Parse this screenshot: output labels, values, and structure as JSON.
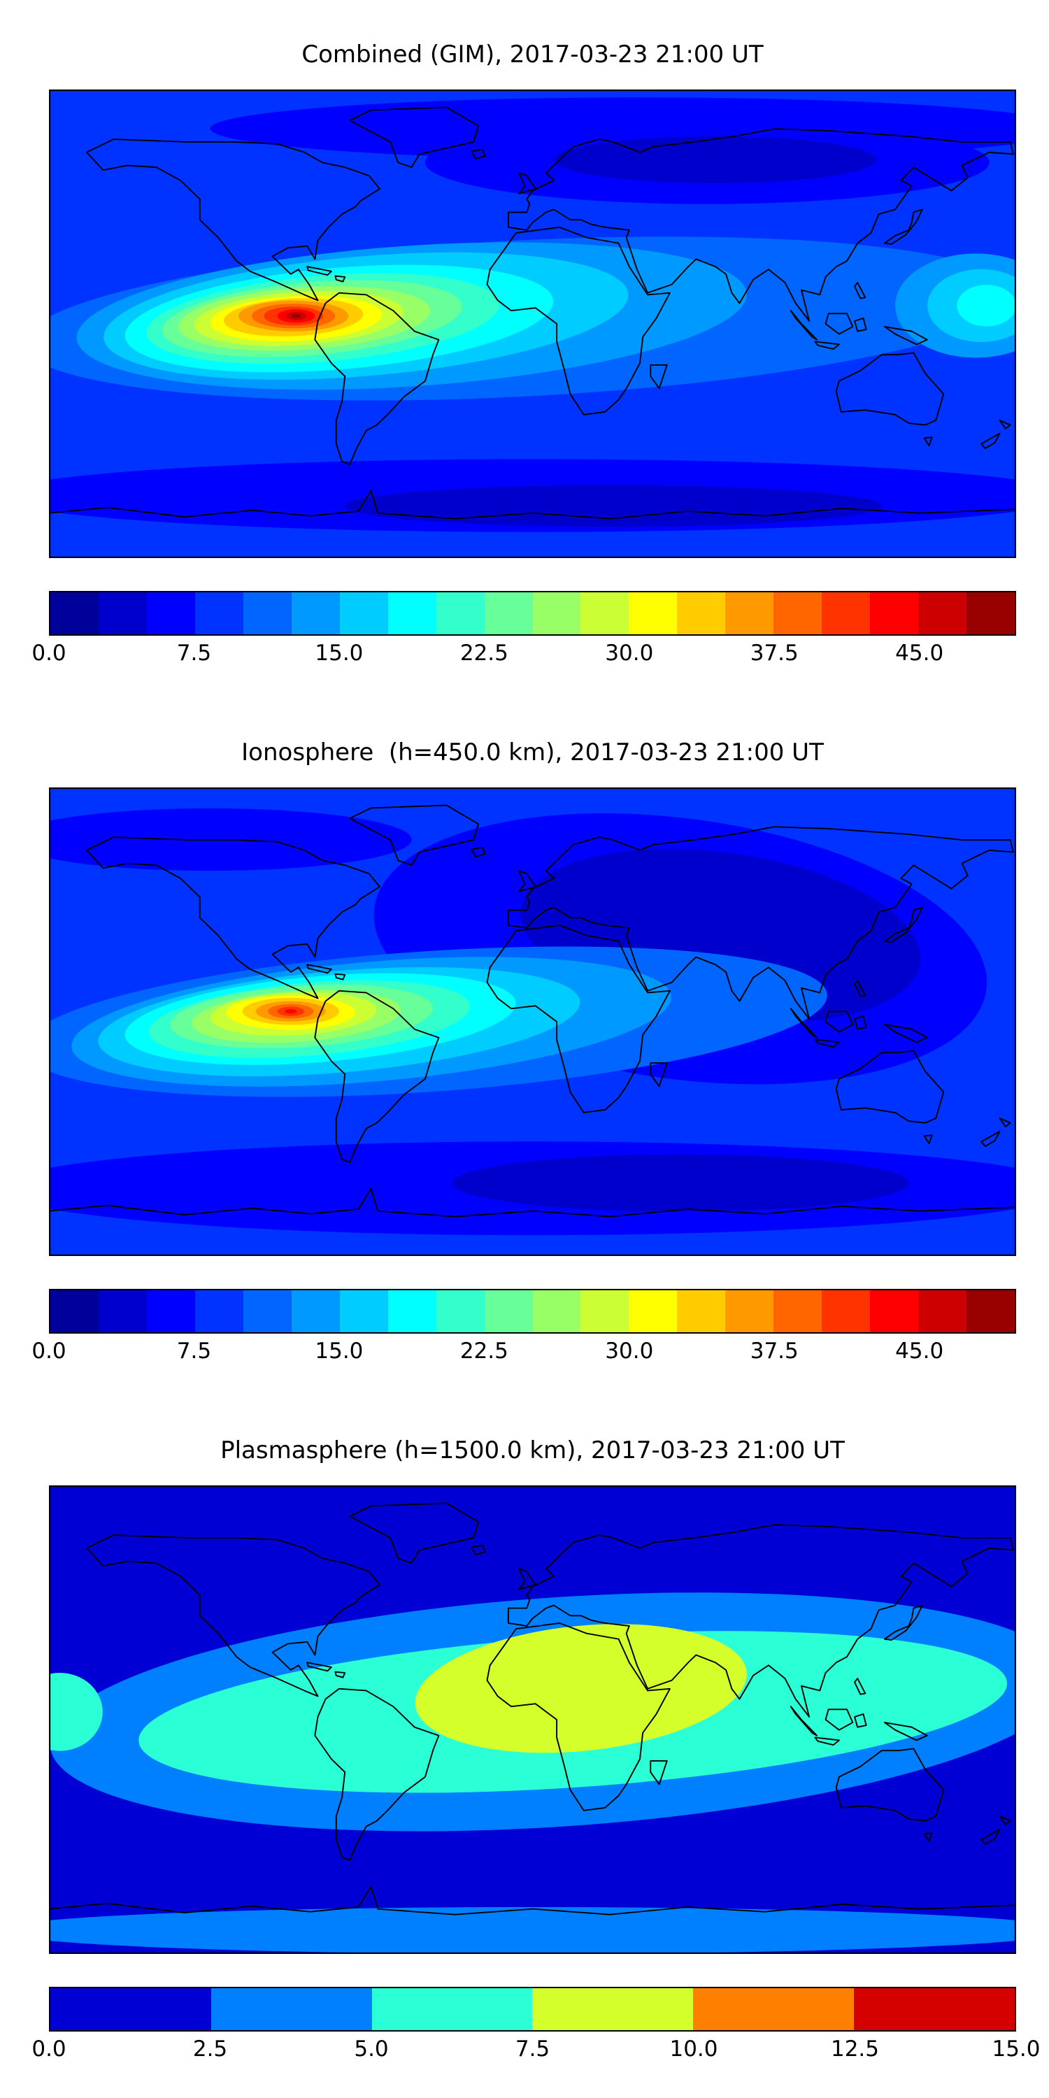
{
  "page": {
    "background": "#ffffff"
  },
  "style": {
    "coastline_color": "#000000",
    "frame_color": "#000000"
  },
  "chart_data": [
    {
      "type": "heatmap",
      "chart_kind": "filled-contour global TEC map, equirectangular projection, lon -180..180, lat -90..90, coastlines overlaid",
      "title": "Combined (GIM), 2017-03-23 21:00 UT",
      "colorbar": {
        "orientation": "horizontal",
        "min": 0,
        "max": 50,
        "level_step": 2.5,
        "ticks": [
          0,
          7.5,
          15,
          22.5,
          30,
          37.5,
          45
        ],
        "tick_labels": [
          "0.0",
          "7.5",
          "15.0",
          "22.5",
          "30.0",
          "37.5",
          "45.0"
        ],
        "colors": [
          "#00009a",
          "#0000cc",
          "#0000ff",
          "#0033ff",
          "#0066ff",
          "#0099ff",
          "#00ccff",
          "#00ffff",
          "#33ffcc",
          "#66ff99",
          "#99ff66",
          "#ccff33",
          "#ffff00",
          "#ffcc00",
          "#ff9900",
          "#ff6600",
          "#ff3300",
          "#ff0000",
          "#cc0000",
          "#990000"
        ]
      },
      "background_value": 7.5,
      "peak": {
        "value_approx": 47.5,
        "lon": -88,
        "lat": 3
      },
      "contours": [
        {
          "lon": 40,
          "lat": 75,
          "rlon": 160,
          "rlat": 12,
          "rot": 0,
          "value": 5
        },
        {
          "lon": 65,
          "lat": 62,
          "rlon": 105,
          "rlat": 16,
          "rot": 0,
          "value": 5
        },
        {
          "lon": 68,
          "lat": 63,
          "rlon": 60,
          "rlat": 9,
          "rot": 0,
          "value": 2.5
        },
        {
          "lon": 0,
          "lat": -66,
          "rlon": 200,
          "rlat": 14,
          "rot": 0,
          "value": 5
        },
        {
          "lon": 30,
          "lat": -70,
          "rlon": 100,
          "rlat": 8,
          "rot": 0,
          "value": 2.5
        },
        {
          "lon": -5,
          "lat": 2,
          "rlon": 185,
          "rlat": 30,
          "rot": -3,
          "value": 10
        },
        {
          "lon": -45,
          "lat": 3,
          "rlon": 125,
          "rlat": 27,
          "rot": -4,
          "value": 12.5
        },
        {
          "lon": 165,
          "lat": 7,
          "rlon": 30,
          "rlat": 20,
          "rot": 0,
          "value": 12.5
        },
        {
          "lon": 167,
          "lat": 7,
          "rlon": 20,
          "rlat": 14,
          "rot": 0,
          "value": 15
        },
        {
          "lon": 169,
          "lat": 7,
          "rlon": 11,
          "rlat": 8,
          "rot": 0,
          "value": 17.5
        },
        {
          "lon": -62,
          "lat": 3,
          "rlon": 98,
          "rlat": 23,
          "rot": -5,
          "value": 15
        },
        {
          "lon": -72,
          "lat": 2,
          "rlon": 80,
          "rlat": 19.5,
          "rot": -5,
          "value": 17.5
        },
        {
          "lon": -78,
          "lat": 2,
          "rlon": 66,
          "rlat": 16.5,
          "rot": -5,
          "value": 20
        },
        {
          "lon": -82,
          "lat": 2,
          "rlon": 56,
          "rlat": 14,
          "rot": -5,
          "value": 22.5
        },
        {
          "lon": -85,
          "lat": 2,
          "rlon": 47,
          "rlat": 12,
          "rot": -4,
          "value": 25
        },
        {
          "lon": -87,
          "lat": 2,
          "rlon": 39,
          "rlat": 10.2,
          "rot": -4,
          "value": 27.5
        },
        {
          "lon": -88,
          "lat": 2,
          "rlon": 32,
          "rlat": 8.6,
          "rot": -3,
          "value": 30
        },
        {
          "lon": -89,
          "lat": 2.5,
          "rlon": 26,
          "rlat": 7.2,
          "rot": -3,
          "value": 32.5
        },
        {
          "lon": -89,
          "lat": 3,
          "rlon": 20.5,
          "rlat": 5.9,
          "rot": 0,
          "value": 35
        },
        {
          "lon": -89,
          "lat": 3,
          "rlon": 15.5,
          "rlat": 4.7,
          "rot": 0,
          "value": 37.5
        },
        {
          "lon": -89,
          "lat": 3,
          "rlon": 11,
          "rlat": 3.6,
          "rot": 0,
          "value": 40
        },
        {
          "lon": -88,
          "lat": 3,
          "rlon": 7,
          "rlat": 2.6,
          "rot": 0,
          "value": 42.5
        },
        {
          "lon": -88,
          "lat": 3,
          "rlon": 4,
          "rlat": 1.6,
          "rot": 0,
          "value": 45
        },
        {
          "lon": -88,
          "lat": 3,
          "rlon": 1.8,
          "rlat": 0.8,
          "rot": 0,
          "value": 47.5
        }
      ]
    },
    {
      "type": "heatmap",
      "chart_kind": "filled-contour global TEC map, equirectangular projection, lon -180..180, lat -90..90, coastlines overlaid",
      "title": "Ionosphere  (h=450.0 km), 2017-03-23 21:00 UT",
      "colorbar": {
        "orientation": "horizontal",
        "min": 0,
        "max": 50,
        "level_step": 2.5,
        "ticks": [
          0,
          7.5,
          15,
          22.5,
          30,
          37.5,
          45
        ],
        "tick_labels": [
          "0.0",
          "7.5",
          "15.0",
          "22.5",
          "30.0",
          "37.5",
          "45.0"
        ],
        "colors": [
          "#00009a",
          "#0000cc",
          "#0000ff",
          "#0033ff",
          "#0066ff",
          "#0099ff",
          "#00ccff",
          "#00ffff",
          "#33ffcc",
          "#66ff99",
          "#99ff66",
          "#ccff33",
          "#ffff00",
          "#ffcc00",
          "#ff9900",
          "#ff6600",
          "#ff3300",
          "#ff0000",
          "#cc0000",
          "#990000"
        ]
      },
      "background_value": 7.5,
      "peak": {
        "value_approx": 45,
        "lon": -90,
        "lat": 4
      },
      "contours": [
        {
          "lon": 55,
          "lat": 28,
          "rlon": 115,
          "rlat": 50,
          "rot": 8,
          "value": 5
        },
        {
          "lon": 70,
          "lat": 33,
          "rlon": 75,
          "rlat": 32,
          "rot": 8,
          "value": 2.5
        },
        {
          "lon": 0,
          "lat": -64,
          "rlon": 200,
          "rlat": 18,
          "rot": 0,
          "value": 5
        },
        {
          "lon": 55,
          "lat": -62,
          "rlon": 85,
          "rlat": 11,
          "rot": 0,
          "value": 2.5
        },
        {
          "lon": -120,
          "lat": 70,
          "rlon": 75,
          "rlat": 12,
          "rot": 0,
          "value": 5
        },
        {
          "lon": -40,
          "lat": 0,
          "rlon": 150,
          "rlat": 27,
          "rot": -4,
          "value": 10
        },
        {
          "lon": -60,
          "lat": 0,
          "rlon": 112,
          "rlat": 23,
          "rot": -5,
          "value": 12.5
        },
        {
          "lon": -72,
          "lat": 0,
          "rlon": 90,
          "rlat": 19.5,
          "rot": -5,
          "value": 15
        },
        {
          "lon": -79,
          "lat": 1,
          "rlon": 73,
          "rlat": 16.5,
          "rot": -5,
          "value": 17.5
        },
        {
          "lon": -83,
          "lat": 1,
          "rlon": 60,
          "rlat": 14,
          "rot": -5,
          "value": 20
        },
        {
          "lon": -86,
          "lat": 2,
          "rlon": 49,
          "rlat": 11.8,
          "rot": -4,
          "value": 22.5
        },
        {
          "lon": -88,
          "lat": 2,
          "rlon": 39,
          "rlat": 9.8,
          "rot": -4,
          "value": 25
        },
        {
          "lon": -89,
          "lat": 3,
          "rlon": 31,
          "rlat": 8.2,
          "rot": -3,
          "value": 27.5
        },
        {
          "lon": -90,
          "lat": 3.5,
          "rlon": 24,
          "rlat": 6.6,
          "rot": 0,
          "value": 30
        },
        {
          "lon": -90,
          "lat": 4,
          "rlon": 18,
          "rlat": 5.2,
          "rot": 0,
          "value": 32.5
        },
        {
          "lon": -90,
          "lat": 4,
          "rlon": 13,
          "rlat": 3.9,
          "rot": 0,
          "value": 35
        },
        {
          "lon": -90,
          "lat": 4,
          "rlon": 8.5,
          "rlat": 2.8,
          "rot": 0,
          "value": 37.5
        },
        {
          "lon": -90,
          "lat": 4,
          "rlon": 5,
          "rlat": 1.8,
          "rot": 0,
          "value": 40
        },
        {
          "lon": -90,
          "lat": 4,
          "rlon": 2.2,
          "rlat": 0.9,
          "rot": 0,
          "value": 42.5
        }
      ]
    },
    {
      "type": "heatmap",
      "chart_kind": "filled-contour global plasmaspheric TEC map, equirectangular projection, lon -180..180, lat -90..90, coastlines overlaid",
      "title": "Plasmasphere (h=1500.0 km), 2017-03-23 21:00 UT",
      "colorbar": {
        "orientation": "horizontal",
        "min": 0,
        "max": 15,
        "level_step": 2.5,
        "ticks": [
          0,
          2.5,
          5,
          7.5,
          10,
          12.5,
          15
        ],
        "tick_labels": [
          "0.0",
          "2.5",
          "5.0",
          "7.5",
          "10.0",
          "12.5",
          "15.0"
        ],
        "colors": [
          "#0000d5",
          "#0080ff",
          "#2affd5",
          "#d5ff2a",
          "#ff8000",
          "#d50000"
        ]
      },
      "background_value": 1,
      "peak": {
        "value_approx": 10,
        "lon": 18,
        "lat": 12
      },
      "contours": [
        {
          "lon": 10,
          "lat": 3,
          "rlon": 190,
          "rlat": 44,
          "rot": -4,
          "value": 3
        },
        {
          "lon": 0,
          "lat": -81,
          "rlon": 200,
          "rlat": 9,
          "rot": 0,
          "value": 3
        },
        {
          "lon": 15,
          "lat": 3,
          "rlon": 162,
          "rlat": 29,
          "rot": -4,
          "value": 6
        },
        {
          "lon": -176,
          "lat": 3,
          "rlon": 16,
          "rlat": 15,
          "rot": 0,
          "value": 6
        },
        {
          "lon": 18,
          "lat": 12,
          "rlon": 62,
          "rlat": 24,
          "rot": -6,
          "value": 8.5
        }
      ]
    }
  ]
}
